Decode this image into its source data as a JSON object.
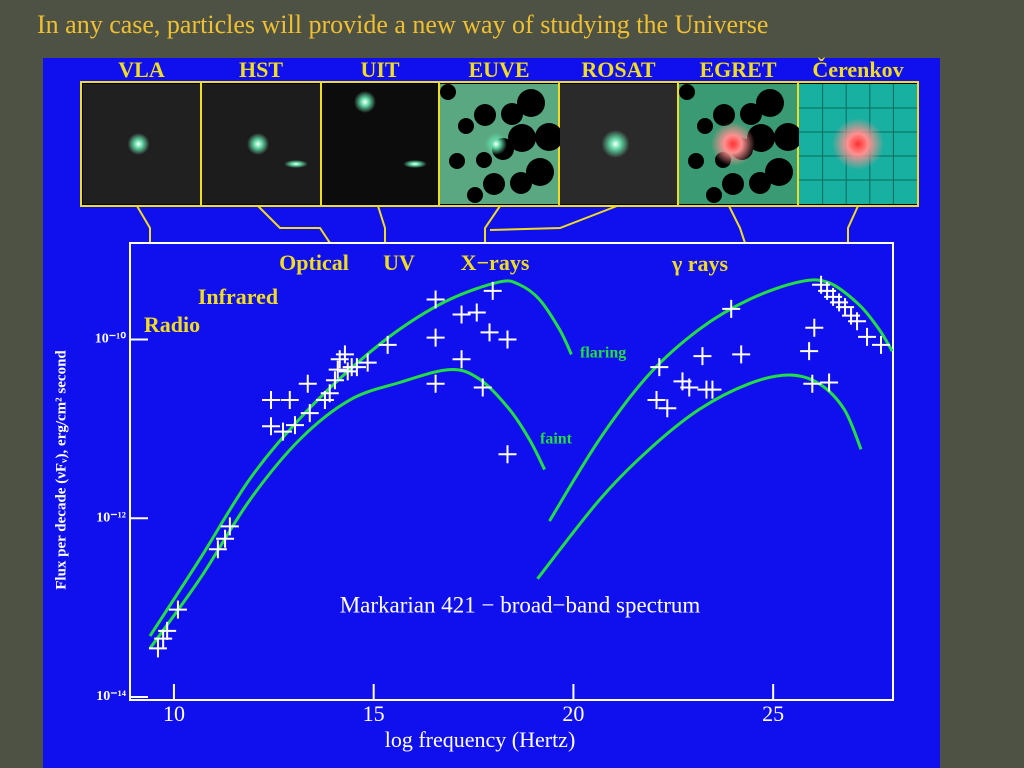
{
  "slide_title": "In any case, particles will provide a new way of studying the Universe",
  "thumbnails": [
    "VLA",
    "HST",
    "UIT",
    "EUVE",
    "ROSAT",
    "EGRET",
    "Čerenkov"
  ],
  "chart_data": {
    "type": "line",
    "title": "Markarian 421 − broad−band spectrum",
    "x_label": "log frequency (Hertz)",
    "y_label": "Flux per decade (νFᵥ), erg/cm² second",
    "annotations": [
      "Optical",
      "UV",
      "X−rays",
      "γ rays",
      "Infrared",
      "Radio"
    ],
    "xlim": [
      8.9,
      28
    ],
    "xticks": [
      10,
      15,
      20,
      25
    ],
    "ylim": [
      1e-14,
      1.2e-09
    ],
    "ylog": true,
    "yticks": [
      {
        "value": 1e-14,
        "label": "10⁻¹⁴"
      },
      {
        "value": 1e-12,
        "label": "10⁻¹²"
      },
      {
        "value": 1e-10,
        "label": "10⁻¹⁰"
      }
    ],
    "series": [
      {
        "name": "flaring",
        "type": "line",
        "color": "#22dd44",
        "x": [
          9.4,
          10.65,
          11.9,
          13.15,
          14.4,
          15.65,
          16.9,
          18.15,
          18.65,
          19.15,
          19.65,
          19.95,
          null,
          19.4,
          20.65,
          21.9,
          23.15,
          24.4,
          25.65,
          26.4,
          27.15,
          27.65,
          27.98
        ],
        "values": [
          4.8e-14,
          3.5e-13,
          2.75e-12,
          1.3e-11,
          4.6e-11,
          1.3e-10,
          2.8e-10,
          4.4e-10,
          4.1e-10,
          2.8e-10,
          1.3e-10,
          6.8e-11,
          null,
          9.3e-13,
          7.6e-12,
          4.1e-11,
          1.3e-10,
          2.8e-10,
          4.4e-10,
          4.3e-10,
          2.45e-10,
          1.3e-10,
          7.4e-11
        ]
      },
      {
        "name": "faint",
        "type": "line",
        "color": "#22dd44",
        "x": [
          9.4,
          10.65,
          11.9,
          13.15,
          14.4,
          15.65,
          16.9,
          17.65,
          18.4,
          18.9,
          19.28,
          null,
          19.1,
          20.65,
          21.9,
          23.15,
          24.4,
          25.4,
          26.15,
          26.78,
          27.2
        ],
        "values": [
          3.5e-14,
          2.1e-13,
          1.6e-12,
          7.6e-12,
          2.1e-11,
          3.3e-11,
          4.6e-11,
          3.6e-11,
          1.65e-11,
          7.6e-12,
          3.5e-12,
          null,
          2.1e-13,
          1.6e-12,
          5.9e-12,
          1.65e-11,
          3.2e-11,
          4e-11,
          3.2e-11,
          1.65e-11,
          5.9e-12
        ]
      },
      {
        "type": "scatter",
        "color": "#ffffff",
        "x": [
          9.6,
          9.73,
          9.83,
          10.1,
          11.1,
          11.28,
          11.4,
          12.43,
          12.43,
          12.73,
          13.03,
          12.9,
          13.35,
          13.4,
          13.78,
          13.9,
          14.03,
          14.1,
          14.15,
          14.28,
          14.35,
          14.45,
          14.58,
          14.85,
          15.35,
          16.55,
          16.55,
          16.55,
          17.2,
          17.2,
          17.58,
          17.98,
          17.9,
          18.35,
          17.73,
          18.35,
          22.15,
          22.08,
          22.35,
          22.73,
          22.9,
          23.23,
          23.33,
          23.48,
          23.95,
          24.2,
          25.9,
          25.98,
          26.03,
          26.4,
          26.2,
          26.35,
          26.5,
          26.65,
          26.8,
          26.95,
          27.1,
          27.35,
          27.7
        ],
        "values": [
          3.5e-14,
          4.5e-14,
          5.5e-14,
          9.5e-14,
          4.5e-13,
          5.9e-13,
          8.1e-13,
          2.1e-11,
          1.07e-11,
          9.3e-12,
          1.1e-11,
          2.1e-11,
          3.2e-11,
          1.5e-11,
          2.1e-11,
          2.5e-11,
          3.5e-11,
          4.6e-11,
          6e-11,
          6.8e-11,
          4.4e-11,
          4.9e-11,
          4.9e-11,
          5.5e-11,
          8.7e-11,
          2.8e-10,
          1.05e-10,
          3.2e-11,
          1.9e-10,
          6e-11,
          2e-10,
          3.5e-10,
          1.2e-10,
          1e-10,
          2.9e-11,
          5.2e-12,
          4.9e-11,
          2.1e-11,
          1.7e-11,
          3.4e-11,
          2.9e-11,
          6.5e-11,
          2.75e-11,
          2.75e-11,
          2.2e-10,
          6.8e-11,
          7.4e-11,
          3.2e-11,
          1.35e-10,
          3.3e-11,
          4.1e-10,
          3.5e-10,
          3e-10,
          2.6e-10,
          2.3e-10,
          1.85e-10,
          1.6e-10,
          1.07e-10,
          8.7e-11
        ]
      }
    ]
  }
}
